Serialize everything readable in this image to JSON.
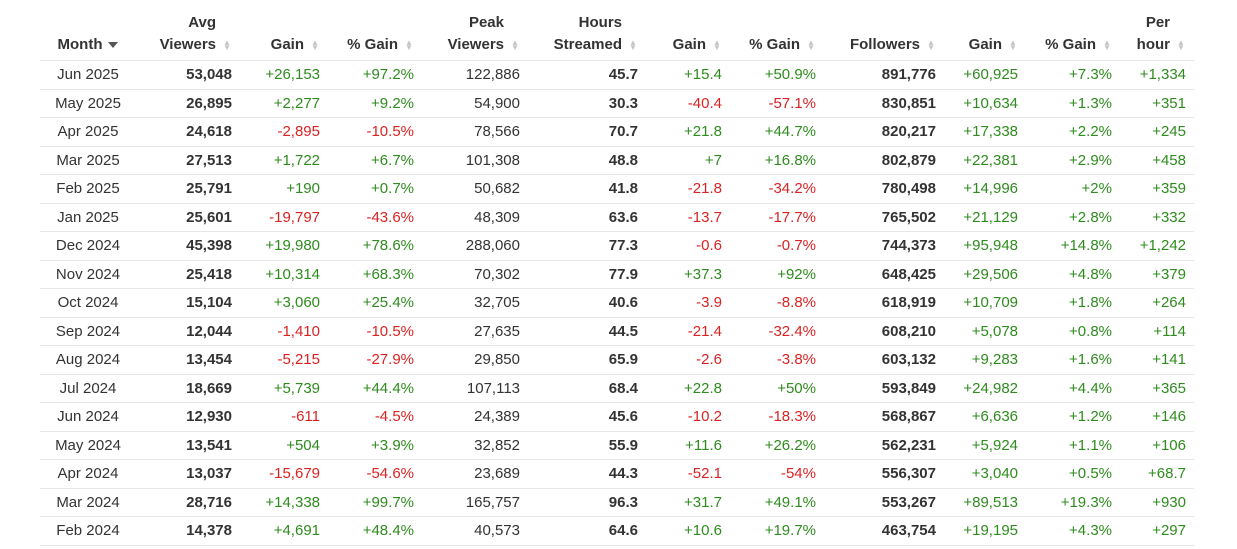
{
  "headers": {
    "month": "Month",
    "avg_viewers": [
      "Avg",
      "Viewers"
    ],
    "gain1": "Gain",
    "pct_gain1": "% Gain",
    "peak_viewers": [
      "Peak",
      "Viewers"
    ],
    "hours_streamed": [
      "Hours",
      "Streamed"
    ],
    "gain2": "Gain",
    "pct_gain2": "% Gain",
    "followers": "Followers",
    "gain3": "Gain",
    "pct_gain3": "% Gain",
    "per_hour": [
      "Per",
      "hour"
    ]
  },
  "colors": {
    "positive": "#2e8b1e",
    "negative": "#d92323",
    "text": "#333333",
    "rule": "#e6e6e6"
  },
  "rows": [
    [
      "Jun 2025",
      "53,048",
      "+26,153",
      "+97.2%",
      "122,886",
      "45.7",
      "+15.4",
      "+50.9%",
      "891,776",
      "+60,925",
      "+7.3%",
      "+1,334"
    ],
    [
      "May 2025",
      "26,895",
      "+2,277",
      "+9.2%",
      "54,900",
      "30.3",
      "-40.4",
      "-57.1%",
      "830,851",
      "+10,634",
      "+1.3%",
      "+351"
    ],
    [
      "Apr 2025",
      "24,618",
      "-2,895",
      "-10.5%",
      "78,566",
      "70.7",
      "+21.8",
      "+44.7%",
      "820,217",
      "+17,338",
      "+2.2%",
      "+245"
    ],
    [
      "Mar 2025",
      "27,513",
      "+1,722",
      "+6.7%",
      "101,308",
      "48.8",
      "+7",
      "+16.8%",
      "802,879",
      "+22,381",
      "+2.9%",
      "+458"
    ],
    [
      "Feb 2025",
      "25,791",
      "+190",
      "+0.7%",
      "50,682",
      "41.8",
      "-21.8",
      "-34.2%",
      "780,498",
      "+14,996",
      "+2%",
      "+359"
    ],
    [
      "Jan 2025",
      "25,601",
      "-19,797",
      "-43.6%",
      "48,309",
      "63.6",
      "-13.7",
      "-17.7%",
      "765,502",
      "+21,129",
      "+2.8%",
      "+332"
    ],
    [
      "Dec 2024",
      "45,398",
      "+19,980",
      "+78.6%",
      "288,060",
      "77.3",
      "-0.6",
      "-0.7%",
      "744,373",
      "+95,948",
      "+14.8%",
      "+1,242"
    ],
    [
      "Nov 2024",
      "25,418",
      "+10,314",
      "+68.3%",
      "70,302",
      "77.9",
      "+37.3",
      "+92%",
      "648,425",
      "+29,506",
      "+4.8%",
      "+379"
    ],
    [
      "Oct 2024",
      "15,104",
      "+3,060",
      "+25.4%",
      "32,705",
      "40.6",
      "-3.9",
      "-8.8%",
      "618,919",
      "+10,709",
      "+1.8%",
      "+264"
    ],
    [
      "Sep 2024",
      "12,044",
      "-1,410",
      "-10.5%",
      "27,635",
      "44.5",
      "-21.4",
      "-32.4%",
      "608,210",
      "+5,078",
      "+0.8%",
      "+114"
    ],
    [
      "Aug 2024",
      "13,454",
      "-5,215",
      "-27.9%",
      "29,850",
      "65.9",
      "-2.6",
      "-3.8%",
      "603,132",
      "+9,283",
      "+1.6%",
      "+141"
    ],
    [
      "Jul 2024",
      "18,669",
      "+5,739",
      "+44.4%",
      "107,113",
      "68.4",
      "+22.8",
      "+50%",
      "593,849",
      "+24,982",
      "+4.4%",
      "+365"
    ],
    [
      "Jun 2024",
      "12,930",
      "-611",
      "-4.5%",
      "24,389",
      "45.6",
      "-10.2",
      "-18.3%",
      "568,867",
      "+6,636",
      "+1.2%",
      "+146"
    ],
    [
      "May 2024",
      "13,541",
      "+504",
      "+3.9%",
      "32,852",
      "55.9",
      "+11.6",
      "+26.2%",
      "562,231",
      "+5,924",
      "+1.1%",
      "+106"
    ],
    [
      "Apr 2024",
      "13,037",
      "-15,679",
      "-54.6%",
      "23,689",
      "44.3",
      "-52.1",
      "-54%",
      "556,307",
      "+3,040",
      "+0.5%",
      "+68.7"
    ],
    [
      "Mar 2024",
      "28,716",
      "+14,338",
      "+99.7%",
      "165,757",
      "96.3",
      "+31.7",
      "+49.1%",
      "553,267",
      "+89,513",
      "+19.3%",
      "+930"
    ],
    [
      "Feb 2024",
      "14,378",
      "+4,691",
      "+48.4%",
      "40,573",
      "64.6",
      "+10.6",
      "+19.7%",
      "463,754",
      "+19,195",
      "+4.3%",
      "+297"
    ]
  ]
}
